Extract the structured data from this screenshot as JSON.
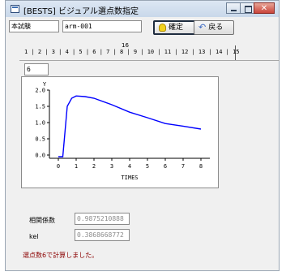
{
  "window": {
    "title": "[BESTS] ビジュアル選点数指定",
    "minimize_icon": "minimize-icon",
    "maximize_icon": "maximize-icon",
    "close_glyph": "✕"
  },
  "toolbar": {
    "experiment_label": "本試験",
    "experiment_value": "arm-001",
    "confirm_label": "確定",
    "back_label": "戻る",
    "confirm_icon": "lightbulb-icon",
    "back_icon": "undo-arrow-icon"
  },
  "point_ruler": {
    "selected_number": "16",
    "ticks": "1 | 2 | 3 | 4 | 5 | 6 | 7 | 8 | 9 | 10 | 11 | 12 | 13 | 14 | 15"
  },
  "points": {
    "value": "6"
  },
  "chart_data": {
    "type": "line",
    "xlabel": "TIMES",
    "ylabel": "Y",
    "xlim": [
      -0.5,
      8.5
    ],
    "ylim": [
      -0.1,
      2.0
    ],
    "xticks": [
      0,
      1,
      2,
      3,
      4,
      5,
      6,
      7,
      8
    ],
    "yticks": [
      0.0,
      0.5,
      1.0,
      1.5,
      2.0
    ],
    "ytick_labels": [
      "0.0",
      "0.5",
      "1.0",
      "1.5",
      "2.0"
    ],
    "grid": false,
    "line_color": "#0000ff",
    "series": [
      {
        "x": [
          0,
          0.25,
          0.5,
          0.75,
          1.0,
          1.5,
          2.0,
          3.0,
          4.0,
          5.0,
          6.0,
          7.0,
          8.0
        ],
        "values": [
          -0.05,
          -0.05,
          1.5,
          1.75,
          1.82,
          1.8,
          1.75,
          1.55,
          1.32,
          1.15,
          0.97,
          0.89,
          0.8
        ]
      }
    ]
  },
  "results": {
    "corr_label": "相関係数",
    "corr_value": "0.9875210888",
    "kel_label": "kel",
    "kel_value": "0.3868668772"
  },
  "status": {
    "message": "選点数6で計算しました。",
    "color": "#8b0000"
  }
}
